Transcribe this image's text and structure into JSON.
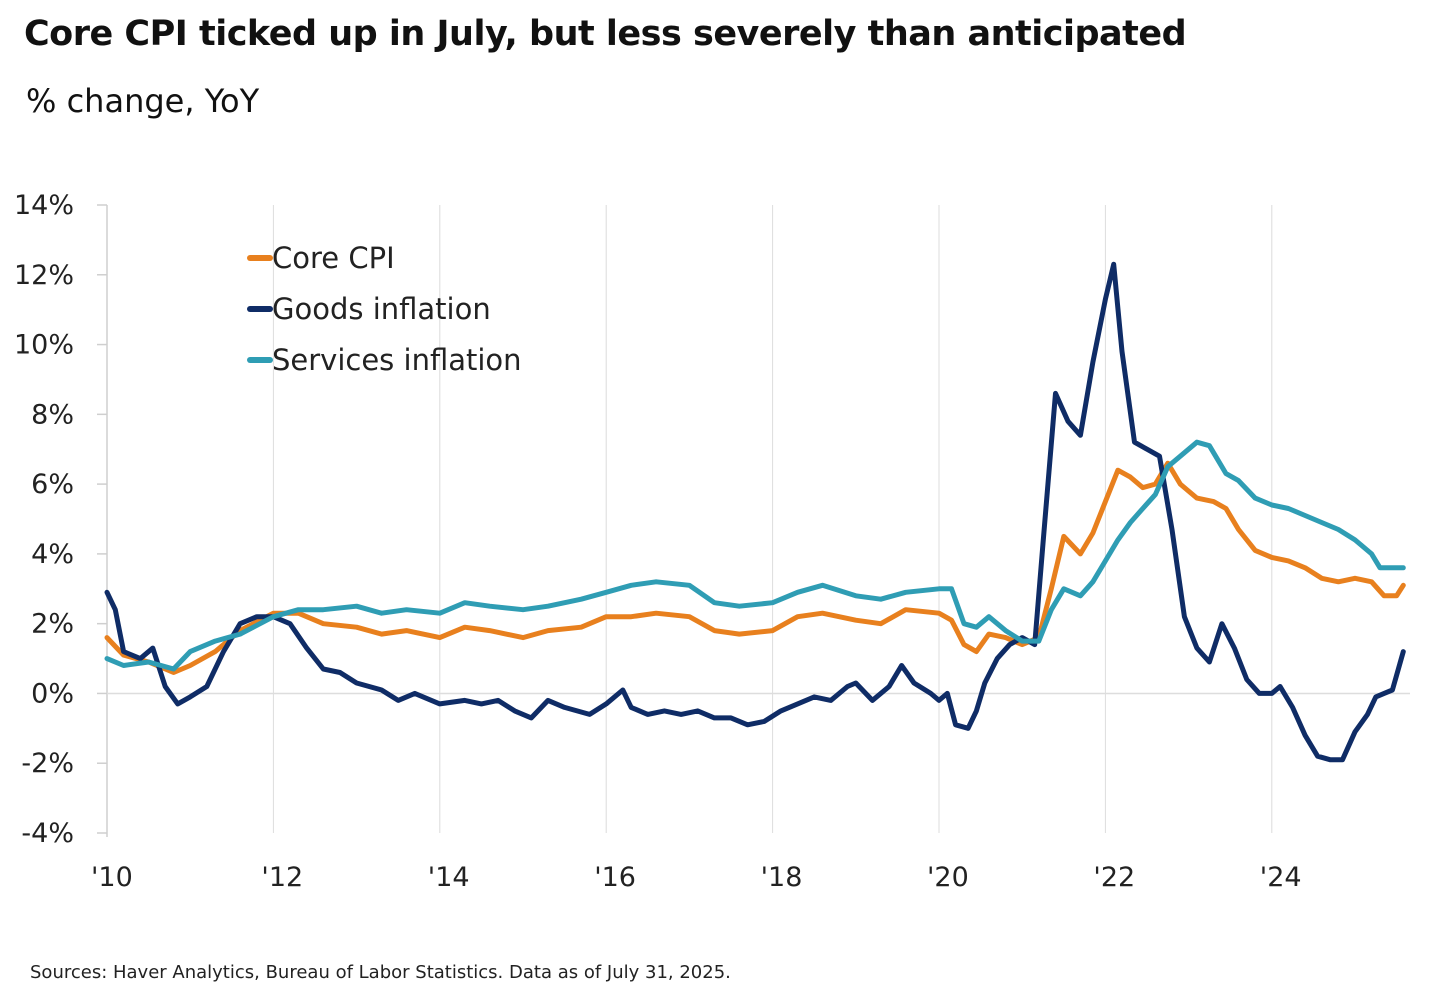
{
  "title": "Core CPI ticked up in July, but less severely than anticipated",
  "subtitle": "% change, YoY",
  "source": "Sources: Haver Analytics, Bureau of Labor Statistics. Data as of July 31, 2025.",
  "chart_data": {
    "type": "line",
    "title": "Core CPI ticked up in July, but less severely than anticipated",
    "ylabel": "% change, YoY",
    "xlabel": "",
    "ylim": [
      -4,
      14
    ],
    "xlim": [
      2010.0,
      2025.7
    ],
    "yticks": [
      -4,
      -2,
      0,
      2,
      4,
      6,
      8,
      10,
      12,
      14
    ],
    "ytick_labels": [
      "-4%",
      "-2%",
      "0%",
      "2%",
      "4%",
      "6%",
      "8%",
      "10%",
      "12%",
      "14%"
    ],
    "xticks": [
      2010,
      2012,
      2014,
      2016,
      2018,
      2020,
      2022,
      2024
    ],
    "xtick_labels": [
      "'10",
      "'12",
      "'14",
      "'16",
      "'18",
      "'20",
      "'22",
      "'24"
    ],
    "grid": "vertical at x ticks",
    "legend_position": "top-left",
    "series": [
      {
        "name": "Core CPI",
        "color": "#E8801E",
        "points": [
          [
            2010.0,
            1.6
          ],
          [
            2010.2,
            1.1
          ],
          [
            2010.5,
            0.9
          ],
          [
            2010.8,
            0.6
          ],
          [
            2011.0,
            0.8
          ],
          [
            2011.3,
            1.2
          ],
          [
            2011.6,
            1.8
          ],
          [
            2012.0,
            2.3
          ],
          [
            2012.3,
            2.3
          ],
          [
            2012.6,
            2.0
          ],
          [
            2013.0,
            1.9
          ],
          [
            2013.3,
            1.7
          ],
          [
            2013.6,
            1.8
          ],
          [
            2014.0,
            1.6
          ],
          [
            2014.3,
            1.9
          ],
          [
            2014.6,
            1.8
          ],
          [
            2015.0,
            1.6
          ],
          [
            2015.3,
            1.8
          ],
          [
            2015.7,
            1.9
          ],
          [
            2016.0,
            2.2
          ],
          [
            2016.3,
            2.2
          ],
          [
            2016.6,
            2.3
          ],
          [
            2017.0,
            2.2
          ],
          [
            2017.3,
            1.8
          ],
          [
            2017.6,
            1.7
          ],
          [
            2018.0,
            1.8
          ],
          [
            2018.3,
            2.2
          ],
          [
            2018.6,
            2.3
          ],
          [
            2019.0,
            2.1
          ],
          [
            2019.3,
            2.0
          ],
          [
            2019.6,
            2.4
          ],
          [
            2020.0,
            2.3
          ],
          [
            2020.15,
            2.1
          ],
          [
            2020.3,
            1.4
          ],
          [
            2020.45,
            1.2
          ],
          [
            2020.6,
            1.7
          ],
          [
            2020.8,
            1.6
          ],
          [
            2021.0,
            1.4
          ],
          [
            2021.2,
            1.6
          ],
          [
            2021.35,
            3.0
          ],
          [
            2021.5,
            4.5
          ],
          [
            2021.7,
            4.0
          ],
          [
            2021.85,
            4.6
          ],
          [
            2022.0,
            5.5
          ],
          [
            2022.15,
            6.4
          ],
          [
            2022.3,
            6.2
          ],
          [
            2022.45,
            5.9
          ],
          [
            2022.6,
            6.0
          ],
          [
            2022.75,
            6.6
          ],
          [
            2022.9,
            6.0
          ],
          [
            2023.1,
            5.6
          ],
          [
            2023.3,
            5.5
          ],
          [
            2023.45,
            5.3
          ],
          [
            2023.6,
            4.7
          ],
          [
            2023.8,
            4.1
          ],
          [
            2024.0,
            3.9
          ],
          [
            2024.2,
            3.8
          ],
          [
            2024.4,
            3.6
          ],
          [
            2024.6,
            3.3
          ],
          [
            2024.8,
            3.2
          ],
          [
            2025.0,
            3.3
          ],
          [
            2025.2,
            3.2
          ],
          [
            2025.35,
            2.8
          ],
          [
            2025.5,
            2.8
          ],
          [
            2025.58,
            3.1
          ]
        ]
      },
      {
        "name": "Goods inflation",
        "color": "#0F2C66",
        "points": [
          [
            2010.0,
            2.9
          ],
          [
            2010.1,
            2.4
          ],
          [
            2010.2,
            1.2
          ],
          [
            2010.4,
            1.0
          ],
          [
            2010.55,
            1.3
          ],
          [
            2010.7,
            0.2
          ],
          [
            2010.85,
            -0.3
          ],
          [
            2011.0,
            -0.1
          ],
          [
            2011.2,
            0.2
          ],
          [
            2011.4,
            1.2
          ],
          [
            2011.6,
            2.0
          ],
          [
            2011.8,
            2.2
          ],
          [
            2012.0,
            2.2
          ],
          [
            2012.2,
            2.0
          ],
          [
            2012.4,
            1.3
          ],
          [
            2012.6,
            0.7
          ],
          [
            2012.8,
            0.6
          ],
          [
            2013.0,
            0.3
          ],
          [
            2013.3,
            0.1
          ],
          [
            2013.5,
            -0.2
          ],
          [
            2013.7,
            0.0
          ],
          [
            2014.0,
            -0.3
          ],
          [
            2014.3,
            -0.2
          ],
          [
            2014.5,
            -0.3
          ],
          [
            2014.7,
            -0.2
          ],
          [
            2014.9,
            -0.5
          ],
          [
            2015.1,
            -0.7
          ],
          [
            2015.3,
            -0.2
          ],
          [
            2015.5,
            -0.4
          ],
          [
            2015.8,
            -0.6
          ],
          [
            2016.0,
            -0.3
          ],
          [
            2016.2,
            0.1
          ],
          [
            2016.3,
            -0.4
          ],
          [
            2016.5,
            -0.6
          ],
          [
            2016.7,
            -0.5
          ],
          [
            2016.9,
            -0.6
          ],
          [
            2017.1,
            -0.5
          ],
          [
            2017.3,
            -0.7
          ],
          [
            2017.5,
            -0.7
          ],
          [
            2017.7,
            -0.9
          ],
          [
            2017.9,
            -0.8
          ],
          [
            2018.1,
            -0.5
          ],
          [
            2018.3,
            -0.3
          ],
          [
            2018.5,
            -0.1
          ],
          [
            2018.7,
            -0.2
          ],
          [
            2018.9,
            0.2
          ],
          [
            2019.0,
            0.3
          ],
          [
            2019.2,
            -0.2
          ],
          [
            2019.4,
            0.2
          ],
          [
            2019.55,
            0.8
          ],
          [
            2019.7,
            0.3
          ],
          [
            2019.9,
            0.0
          ],
          [
            2020.0,
            -0.2
          ],
          [
            2020.1,
            0.0
          ],
          [
            2020.2,
            -0.9
          ],
          [
            2020.35,
            -1.0
          ],
          [
            2020.45,
            -0.5
          ],
          [
            2020.55,
            0.3
          ],
          [
            2020.7,
            1.0
          ],
          [
            2020.85,
            1.4
          ],
          [
            2021.0,
            1.6
          ],
          [
            2021.15,
            1.4
          ],
          [
            2021.25,
            4.3
          ],
          [
            2021.4,
            8.6
          ],
          [
            2021.55,
            7.8
          ],
          [
            2021.7,
            7.4
          ],
          [
            2021.85,
            9.5
          ],
          [
            2022.0,
            11.3
          ],
          [
            2022.1,
            12.3
          ],
          [
            2022.2,
            9.8
          ],
          [
            2022.35,
            7.2
          ],
          [
            2022.5,
            7.0
          ],
          [
            2022.65,
            6.8
          ],
          [
            2022.8,
            4.7
          ],
          [
            2022.95,
            2.2
          ],
          [
            2023.1,
            1.3
          ],
          [
            2023.25,
            0.9
          ],
          [
            2023.4,
            2.0
          ],
          [
            2023.55,
            1.3
          ],
          [
            2023.7,
            0.4
          ],
          [
            2023.85,
            0.0
          ],
          [
            2024.0,
            0.0
          ],
          [
            2024.1,
            0.2
          ],
          [
            2024.25,
            -0.4
          ],
          [
            2024.4,
            -1.2
          ],
          [
            2024.55,
            -1.8
          ],
          [
            2024.7,
            -1.9
          ],
          [
            2024.85,
            -1.9
          ],
          [
            2025.0,
            -1.1
          ],
          [
            2025.15,
            -0.6
          ],
          [
            2025.25,
            -0.1
          ],
          [
            2025.35,
            0.0
          ],
          [
            2025.45,
            0.1
          ],
          [
            2025.58,
            1.2
          ]
        ]
      },
      {
        "name": "Services inflation",
        "color": "#2F9DB4",
        "points": [
          [
            2010.0,
            1.0
          ],
          [
            2010.2,
            0.8
          ],
          [
            2010.5,
            0.9
          ],
          [
            2010.8,
            0.7
          ],
          [
            2011.0,
            1.2
          ],
          [
            2011.3,
            1.5
          ],
          [
            2011.6,
            1.7
          ],
          [
            2012.0,
            2.2
          ],
          [
            2012.3,
            2.4
          ],
          [
            2012.6,
            2.4
          ],
          [
            2013.0,
            2.5
          ],
          [
            2013.3,
            2.3
          ],
          [
            2013.6,
            2.4
          ],
          [
            2014.0,
            2.3
          ],
          [
            2014.3,
            2.6
          ],
          [
            2014.6,
            2.5
          ],
          [
            2015.0,
            2.4
          ],
          [
            2015.3,
            2.5
          ],
          [
            2015.7,
            2.7
          ],
          [
            2016.0,
            2.9
          ],
          [
            2016.3,
            3.1
          ],
          [
            2016.6,
            3.2
          ],
          [
            2017.0,
            3.1
          ],
          [
            2017.3,
            2.6
          ],
          [
            2017.6,
            2.5
          ],
          [
            2018.0,
            2.6
          ],
          [
            2018.3,
            2.9
          ],
          [
            2018.6,
            3.1
          ],
          [
            2019.0,
            2.8
          ],
          [
            2019.3,
            2.7
          ],
          [
            2019.6,
            2.9
          ],
          [
            2020.0,
            3.0
          ],
          [
            2020.15,
            3.0
          ],
          [
            2020.3,
            2.0
          ],
          [
            2020.45,
            1.9
          ],
          [
            2020.6,
            2.2
          ],
          [
            2020.8,
            1.8
          ],
          [
            2021.0,
            1.5
          ],
          [
            2021.2,
            1.5
          ],
          [
            2021.35,
            2.4
          ],
          [
            2021.5,
            3.0
          ],
          [
            2021.7,
            2.8
          ],
          [
            2021.85,
            3.2
          ],
          [
            2022.0,
            3.8
          ],
          [
            2022.15,
            4.4
          ],
          [
            2022.3,
            4.9
          ],
          [
            2022.45,
            5.3
          ],
          [
            2022.6,
            5.7
          ],
          [
            2022.75,
            6.5
          ],
          [
            2022.9,
            6.8
          ],
          [
            2023.1,
            7.2
          ],
          [
            2023.25,
            7.1
          ],
          [
            2023.45,
            6.3
          ],
          [
            2023.6,
            6.1
          ],
          [
            2023.8,
            5.6
          ],
          [
            2024.0,
            5.4
          ],
          [
            2024.2,
            5.3
          ],
          [
            2024.4,
            5.1
          ],
          [
            2024.6,
            4.9
          ],
          [
            2024.8,
            4.7
          ],
          [
            2025.0,
            4.4
          ],
          [
            2025.2,
            4.0
          ],
          [
            2025.3,
            3.6
          ],
          [
            2025.45,
            3.6
          ],
          [
            2025.58,
            3.6
          ]
        ]
      }
    ]
  }
}
